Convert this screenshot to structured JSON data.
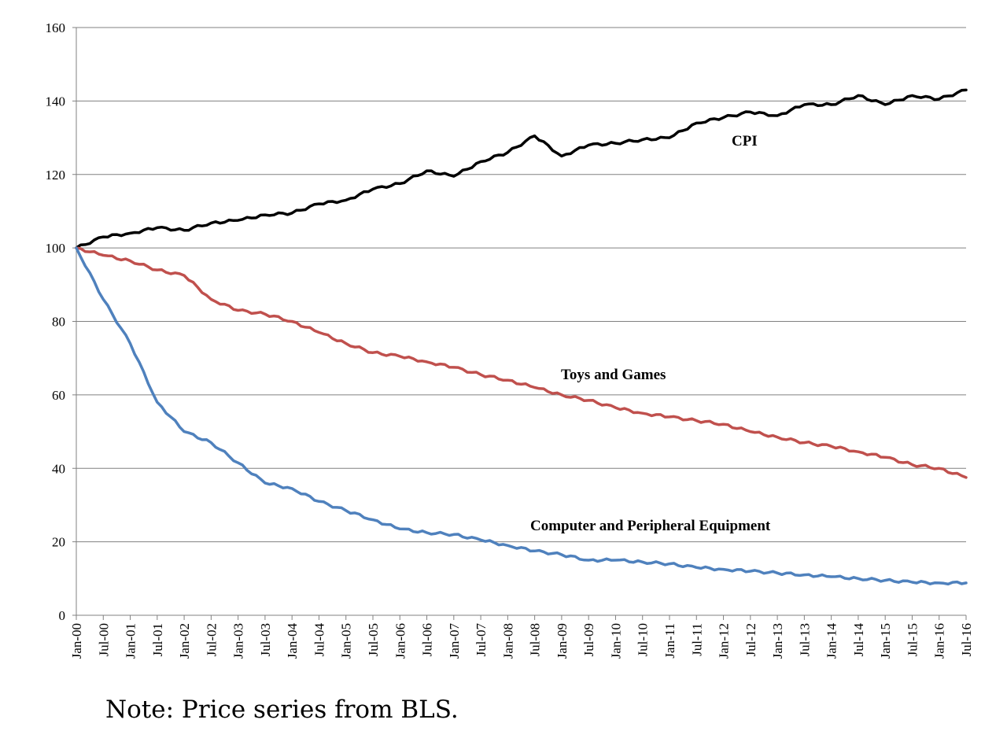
{
  "note": "Note: Price series from BLS.",
  "chart_data": {
    "type": "line",
    "title": "",
    "xlabel": "",
    "ylabel": "",
    "ylim": [
      0,
      160
    ],
    "yticks": [
      0,
      20,
      40,
      60,
      80,
      100,
      120,
      140,
      160
    ],
    "grid": true,
    "legend": "inline labels",
    "categories": [
      "Jan-00",
      "Jul-00",
      "Jan-01",
      "Jul-01",
      "Jan-02",
      "Jul-02",
      "Jan-03",
      "Jul-03",
      "Jan-04",
      "Jul-04",
      "Jan-05",
      "Jul-05",
      "Jan-06",
      "Jul-06",
      "Jan-07",
      "Jul-07",
      "Jan-08",
      "Jul-08",
      "Jan-09",
      "Jul-09",
      "Jan-10",
      "Jul-10",
      "Jan-11",
      "Jul-11",
      "Jan-12",
      "Jul-12",
      "Jan-13",
      "Jul-13",
      "Jan-14",
      "Jul-14",
      "Jan-15",
      "Jul-15",
      "Jan-16",
      "Jul-16"
    ],
    "series": [
      {
        "name": "CPI",
        "label": "CPI",
        "color": "#000000",
        "values": [
          100,
          103,
          104,
          105.5,
          104.8,
          106.8,
          107.5,
          109,
          109.5,
          112,
          113,
          116,
          117.5,
          121,
          119.5,
          123.5,
          126,
          130.5,
          125,
          128,
          128.5,
          129.5,
          130,
          134,
          135.5,
          137,
          136,
          139,
          139,
          141.5,
          139,
          141.5,
          140.5,
          143
        ]
      },
      {
        "name": "Toys and Games",
        "label": "Toys and Games",
        "color": "#c0504d",
        "values": [
          100,
          98,
          96.5,
          94,
          92.5,
          86,
          83,
          82,
          80,
          77,
          74,
          71.5,
          70.5,
          69,
          67.5,
          65.5,
          64,
          62,
          60,
          58.5,
          56.5,
          55,
          54,
          53,
          52,
          50,
          48.5,
          47,
          46,
          44.5,
          43,
          41,
          40,
          37.5
        ]
      },
      {
        "name": "Computer and Peripheral Equipment",
        "label": "Computer and Peripheral Equipment",
        "color": "#4f81bd",
        "values": [
          100,
          86,
          74,
          58,
          50,
          47,
          41.5,
          36,
          34.5,
          31,
          28.5,
          26,
          23.5,
          22.5,
          22,
          20.5,
          19,
          17.5,
          16.5,
          15,
          15,
          14.5,
          14,
          13,
          12.5,
          12,
          11.5,
          11,
          10.5,
          10,
          9.5,
          9,
          8.8,
          8.8
        ]
      }
    ]
  }
}
